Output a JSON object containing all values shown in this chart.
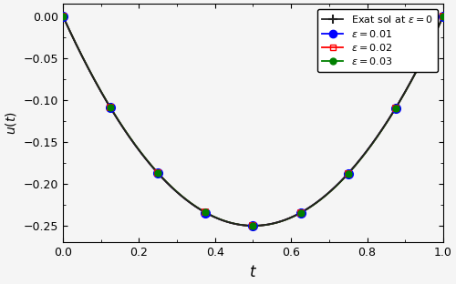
{
  "title": "",
  "xlabel": "$t$",
  "ylabel": "$u(t)$",
  "xlim": [
    0.0,
    1.0
  ],
  "ylim": [
    -0.27,
    0.015
  ],
  "yticks": [
    0.0,
    -0.05,
    -0.1,
    -0.15,
    -0.2,
    -0.25
  ],
  "xticks": [
    0.0,
    0.2,
    0.4,
    0.6,
    0.8,
    1.0
  ],
  "legend_labels": [
    "Exat sol at $\\varepsilon=0$",
    "$\\varepsilon=0.01$",
    "$\\varepsilon=0.02$",
    "$\\varepsilon=0.03$"
  ],
  "figsize": [
    5.0,
    3.12
  ],
  "dpi": 100,
  "N": 8,
  "line_colors": [
    "#222222",
    "blue",
    "red",
    "green"
  ],
  "background_color": "#f5f5f5"
}
